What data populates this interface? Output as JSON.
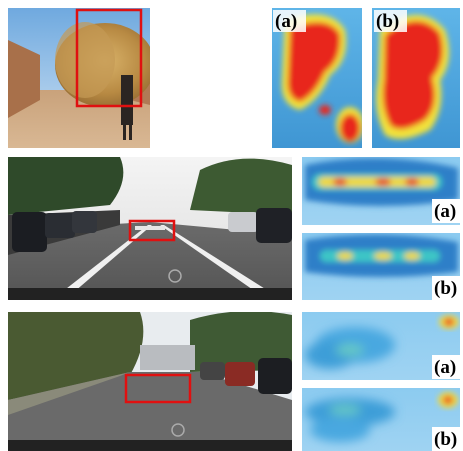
{
  "figure": {
    "rows": [
      {
        "panels": [
          {
            "label": "(a)"
          },
          {
            "label": "(b)"
          }
        ]
      },
      {
        "panels": [
          {
            "label": "(a)"
          },
          {
            "label": "(b)"
          }
        ]
      },
      {
        "panels": [
          {
            "label": "(a)"
          },
          {
            "label": "(b)"
          }
        ]
      }
    ]
  }
}
